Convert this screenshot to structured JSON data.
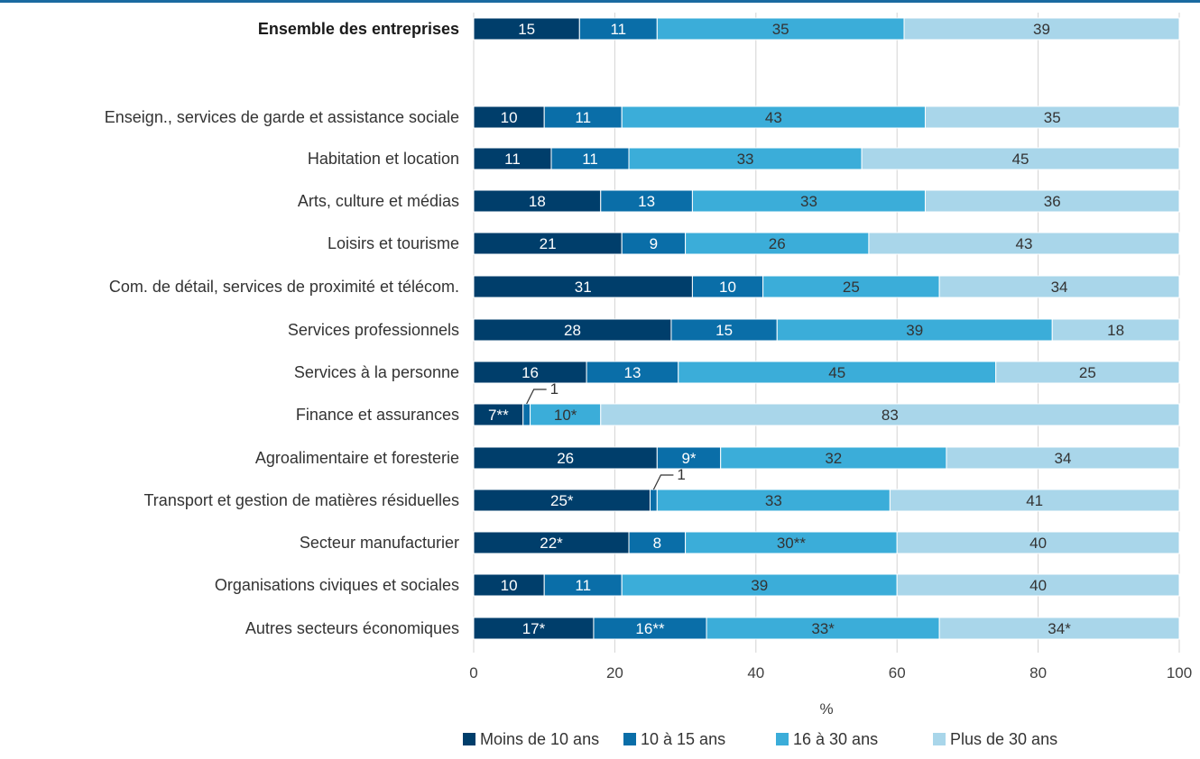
{
  "chart_data": {
    "type": "bar",
    "orientation": "horizontal",
    "stacked": true,
    "xlabel": "%",
    "xlim": [
      0,
      100
    ],
    "xticks": [
      "0",
      "20",
      "40",
      "60",
      "80",
      "100"
    ],
    "grid": true,
    "legend_position": "bottom-right",
    "categories": [
      "Ensemble des entreprises",
      "Enseign., services de garde et assistance sociale",
      "Habitation et location",
      "Arts, culture et médias",
      "Loisirs et tourisme",
      "Com. de détail, services de proximité et télécom.",
      "Services professionnels",
      "Services à la personne",
      "Finance et assurances",
      "Agroalimentaire et foresterie",
      "Transport et gestion de matières résiduelles",
      "Secteur manufacturier",
      "Organisations civiques et sociales",
      "Autres secteurs économiques"
    ],
    "bold_categories": [
      "Ensemble des entreprises"
    ],
    "series": [
      {
        "name": "Moins de 10 ans",
        "color": "#003e6b",
        "values": [
          15,
          10,
          11,
          18,
          21,
          31,
          28,
          16,
          7,
          26,
          25,
          22,
          10,
          17
        ],
        "labels": [
          "15",
          "10",
          "11",
          "18",
          "21",
          "31",
          "28",
          "16",
          "7**",
          "26",
          "25*",
          "22*",
          "10",
          "17*"
        ]
      },
      {
        "name": "10 à 15 ans",
        "color": "#0a6ea8",
        "values": [
          11,
          11,
          11,
          13,
          9,
          10,
          15,
          13,
          1,
          9,
          1,
          8,
          11,
          16
        ],
        "labels": [
          "11",
          "11",
          "11",
          "13",
          "9",
          "10",
          "15",
          "13",
          "1",
          "9*",
          "1",
          "8",
          "11",
          "16**"
        ]
      },
      {
        "name": "16 à 30 ans",
        "color": "#3badd9",
        "values": [
          35,
          43,
          33,
          33,
          26,
          25,
          39,
          45,
          10,
          32,
          33,
          30,
          39,
          33
        ],
        "labels": [
          "35",
          "43",
          "33",
          "33",
          "26",
          "25",
          "39",
          "45",
          "10*",
          "32",
          "33",
          "30**",
          "39",
          "33*"
        ]
      },
      {
        "name": "Plus de 30 ans",
        "color": "#a9d6ea",
        "values": [
          39,
          35,
          45,
          36,
          43,
          34,
          18,
          25,
          83,
          34,
          41,
          40,
          40,
          34
        ],
        "labels": [
          "39",
          "35",
          "45",
          "36",
          "43",
          "34",
          "18",
          "25",
          "83",
          "34",
          "41",
          "40",
          "40",
          "34*"
        ]
      }
    ]
  }
}
